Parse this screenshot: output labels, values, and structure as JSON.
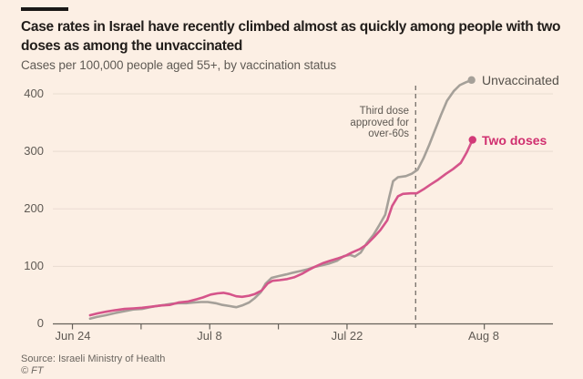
{
  "header": {
    "title": "Case rates in Israel have recently climbed almost as quickly among people with two doses as among the unvaccinated",
    "subtitle": "Cases per 100,000 people aged 55+, by vaccination status"
  },
  "colors": {
    "background": "#FCEFE4",
    "gridline": "#E9DCD1",
    "axis": "#66615A",
    "dashed_rule": "#7E7871",
    "title_text": "#211D1A",
    "muted_text": "#5F5A54"
  },
  "chart_data": {
    "type": "line",
    "title": "Case rates in Israel have recently climbed almost as quickly among people with two doses as among the unvaccinated",
    "subtitle": "Cases per 100,000 people aged 55+, by vaccination status",
    "x_unit": "days since Jun 24 (2021)",
    "x_axis": {
      "min": -2,
      "max": 49,
      "ticks": [
        {
          "day": 0,
          "label": "Jun 24"
        },
        {
          "day": 7,
          "label": ""
        },
        {
          "day": 14,
          "label": "Jul 8"
        },
        {
          "day": 21,
          "label": ""
        },
        {
          "day": 28,
          "label": "Jul 22"
        },
        {
          "day": 42,
          "label": "Aug 8"
        }
      ]
    },
    "y_axis": {
      "min": 0,
      "max": 400,
      "ticks": [
        0,
        100,
        200,
        300,
        400
      ]
    },
    "grid": true,
    "legend_position": "end-of-line",
    "annotation": {
      "day": 35,
      "lines": [
        "Third dose",
        "approved for",
        "over-60s"
      ],
      "rule_style": "dashed-vertical"
    },
    "series": [
      {
        "name": "Unvaccinated",
        "color": "#A5A099",
        "marker_color": "#A5A099",
        "label_color": "#54504A",
        "points": [
          [
            1.8,
            9
          ],
          [
            2.5,
            12
          ],
          [
            3.4,
            15
          ],
          [
            4.4,
            19
          ],
          [
            5.3,
            22
          ],
          [
            6.2,
            25
          ],
          [
            7.1,
            26
          ],
          [
            7.9,
            29
          ],
          [
            8.6,
            31
          ],
          [
            9.4,
            33
          ],
          [
            10.1,
            35
          ],
          [
            10.8,
            36
          ],
          [
            11.6,
            36
          ],
          [
            12.3,
            37
          ],
          [
            13.1,
            38
          ],
          [
            13.8,
            38
          ],
          [
            14.6,
            36
          ],
          [
            15.3,
            33
          ],
          [
            16.0,
            31
          ],
          [
            16.7,
            29
          ],
          [
            17.3,
            32
          ],
          [
            18.0,
            37
          ],
          [
            18.6,
            45
          ],
          [
            19.2,
            55
          ],
          [
            19.7,
            70
          ],
          [
            20.3,
            80
          ],
          [
            21.0,
            83
          ],
          [
            21.8,
            86
          ],
          [
            22.5,
            89
          ],
          [
            23.3,
            92
          ],
          [
            24.0,
            95
          ],
          [
            24.7,
            99
          ],
          [
            25.5,
            102
          ],
          [
            26.2,
            105
          ],
          [
            27.0,
            110
          ],
          [
            27.7,
            118
          ],
          [
            28.3,
            120
          ],
          [
            28.8,
            117
          ],
          [
            29.4,
            124
          ],
          [
            30.0,
            140
          ],
          [
            30.7,
            155
          ],
          [
            31.3,
            172
          ],
          [
            31.9,
            190
          ],
          [
            32.3,
            220
          ],
          [
            32.7,
            248
          ],
          [
            33.2,
            255
          ],
          [
            34.0,
            257
          ],
          [
            34.6,
            261
          ],
          [
            35.2,
            268
          ],
          [
            35.8,
            288
          ],
          [
            36.4,
            312
          ],
          [
            37.0,
            338
          ],
          [
            37.6,
            364
          ],
          [
            38.2,
            388
          ],
          [
            38.9,
            405
          ],
          [
            39.5,
            415
          ],
          [
            40.1,
            420
          ],
          [
            40.7,
            424
          ]
        ]
      },
      {
        "name": "Two doses",
        "color": "#D5548A",
        "marker_color": "#D23A78",
        "label_color": "#D02F6F",
        "points": [
          [
            1.8,
            15
          ],
          [
            2.5,
            18
          ],
          [
            3.4,
            21
          ],
          [
            4.4,
            24
          ],
          [
            5.3,
            26
          ],
          [
            6.2,
            27
          ],
          [
            7.1,
            28
          ],
          [
            8.1,
            30
          ],
          [
            9.0,
            32
          ],
          [
            9.9,
            33
          ],
          [
            10.8,
            37
          ],
          [
            11.8,
            39
          ],
          [
            12.7,
            43
          ],
          [
            13.3,
            46
          ],
          [
            14.1,
            51
          ],
          [
            14.8,
            53
          ],
          [
            15.4,
            54
          ],
          [
            16.0,
            52
          ],
          [
            16.7,
            48
          ],
          [
            17.3,
            47
          ],
          [
            18.0,
            49
          ],
          [
            18.6,
            52
          ],
          [
            19.3,
            58
          ],
          [
            19.9,
            70
          ],
          [
            20.4,
            75
          ],
          [
            21.1,
            76
          ],
          [
            21.9,
            78
          ],
          [
            22.6,
            81
          ],
          [
            23.4,
            87
          ],
          [
            24.1,
            94
          ],
          [
            24.8,
            100
          ],
          [
            25.6,
            106
          ],
          [
            26.3,
            110
          ],
          [
            27.1,
            114
          ],
          [
            27.8,
            118
          ],
          [
            28.5,
            124
          ],
          [
            29.3,
            130
          ],
          [
            30.0,
            138
          ],
          [
            30.8,
            152
          ],
          [
            31.4,
            163
          ],
          [
            32.1,
            180
          ],
          [
            32.6,
            205
          ],
          [
            33.2,
            222
          ],
          [
            33.7,
            226
          ],
          [
            34.5,
            227
          ],
          [
            35.1,
            227
          ],
          [
            35.8,
            234
          ],
          [
            36.5,
            242
          ],
          [
            37.3,
            251
          ],
          [
            38.1,
            261
          ],
          [
            38.8,
            269
          ],
          [
            39.6,
            280
          ],
          [
            40.2,
            298
          ],
          [
            40.8,
            320
          ]
        ]
      }
    ]
  },
  "footer": {
    "source": "Source: Israeli Ministry of Health",
    "credit": "© FT"
  }
}
